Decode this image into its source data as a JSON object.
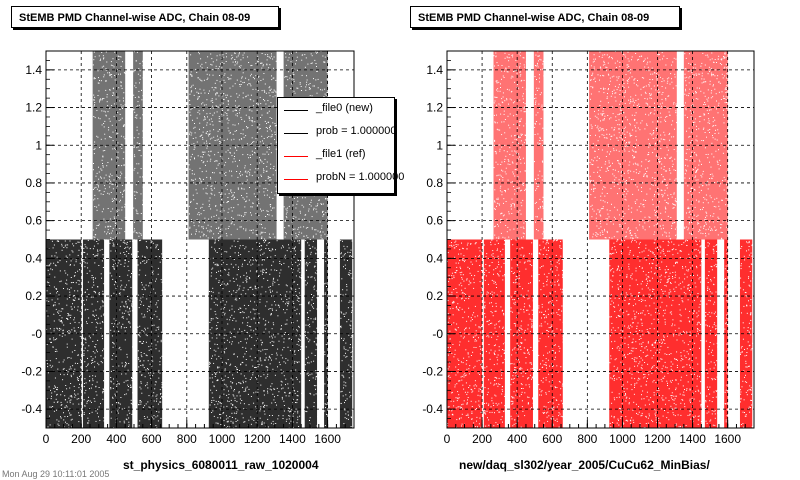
{
  "chart_data": [
    {
      "type": "scatter",
      "title": "StEMB PMD Channel-wise ADC, Chain 08-09",
      "xlabel": "st_physics_6080011_raw_1020004",
      "ylabel": "",
      "xlim": [
        0,
        1750
      ],
      "ylim": [
        -0.5,
        1.5
      ],
      "x_ticks": [
        "0",
        "200",
        "400",
        "600",
        "800",
        "1000",
        "1200",
        "1400",
        "1600"
      ],
      "y_ticks": [
        "-0.4",
        "-0.2",
        "-0",
        "0.2",
        "0.4",
        "0.6",
        "0.8",
        "1",
        "1.2",
        "1.4"
      ],
      "grid": true,
      "series_color": "#000000",
      "low_band": {
        "y_range": [
          -0.5,
          0.5
        ],
        "x_ranges": [
          [
            0,
            200
          ],
          [
            210,
            330
          ],
          [
            360,
            490
          ],
          [
            520,
            660
          ],
          [
            925,
            1450
          ],
          [
            1470,
            1540
          ],
          [
            1580,
            1600
          ],
          [
            1670,
            1740
          ]
        ]
      },
      "high_band": {
        "y_range": [
          0.5,
          1.5
        ],
        "x_ranges": [
          [
            265,
            450
          ],
          [
            495,
            550
          ],
          [
            810,
            1310
          ],
          [
            1350,
            1600
          ]
        ]
      },
      "legend": [
        {
          "label": "_file0 (new)",
          "color": "#000000"
        },
        {
          "label": "prob = 1.000000",
          "color": "#000000"
        },
        {
          "label": "_file1 (ref)",
          "color": "#ff0000"
        },
        {
          "label": "probN = 1.000000",
          "color": "#ff0000"
        }
      ],
      "legend_position": "top-right"
    },
    {
      "type": "scatter",
      "title": "StEMB PMD Channel-wise ADC, Chain 08-09",
      "xlabel": "new/daq_sl302/year_2005/CuCu62_MinBias/",
      "ylabel": "",
      "xlim": [
        0,
        1750
      ],
      "ylim": [
        -0.5,
        1.5
      ],
      "x_ticks": [
        "0",
        "200",
        "400",
        "600",
        "800",
        "1000",
        "1200",
        "1400",
        "1600"
      ],
      "y_ticks": [
        "-0.4",
        "-0.2",
        "-0",
        "0.2",
        "0.4",
        "0.6",
        "0.8",
        "1",
        "1.2",
        "1.4"
      ],
      "grid": true,
      "series_color": "#ff0000",
      "low_band": {
        "y_range": [
          -0.5,
          0.5
        ],
        "x_ranges": [
          [
            0,
            200
          ],
          [
            210,
            330
          ],
          [
            360,
            490
          ],
          [
            520,
            660
          ],
          [
            925,
            1450
          ],
          [
            1470,
            1540
          ],
          [
            1580,
            1600
          ],
          [
            1670,
            1740
          ]
        ]
      },
      "high_band": {
        "y_range": [
          0.5,
          1.5
        ],
        "x_ranges": [
          [
            265,
            450
          ],
          [
            495,
            550
          ],
          [
            810,
            1310
          ],
          [
            1350,
            1600
          ]
        ]
      }
    }
  ],
  "footer_text": "Mon Aug 29 10:11:01 2005"
}
